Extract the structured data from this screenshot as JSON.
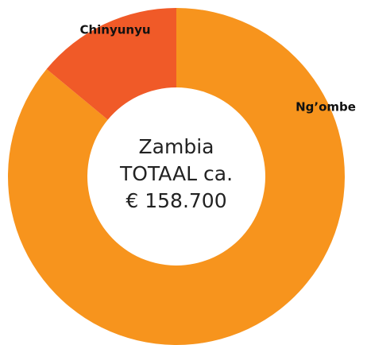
{
  "chart_data": {
    "type": "pie",
    "donut": true,
    "categories": [
      "Ng’ombe",
      "Chinyunyu"
    ],
    "values": [
      86,
      14
    ],
    "colors": [
      "#f7941d",
      "#f05a28"
    ],
    "center_text": [
      "Zambia",
      "TOTAAL ca.",
      "€ 158.700"
    ]
  }
}
